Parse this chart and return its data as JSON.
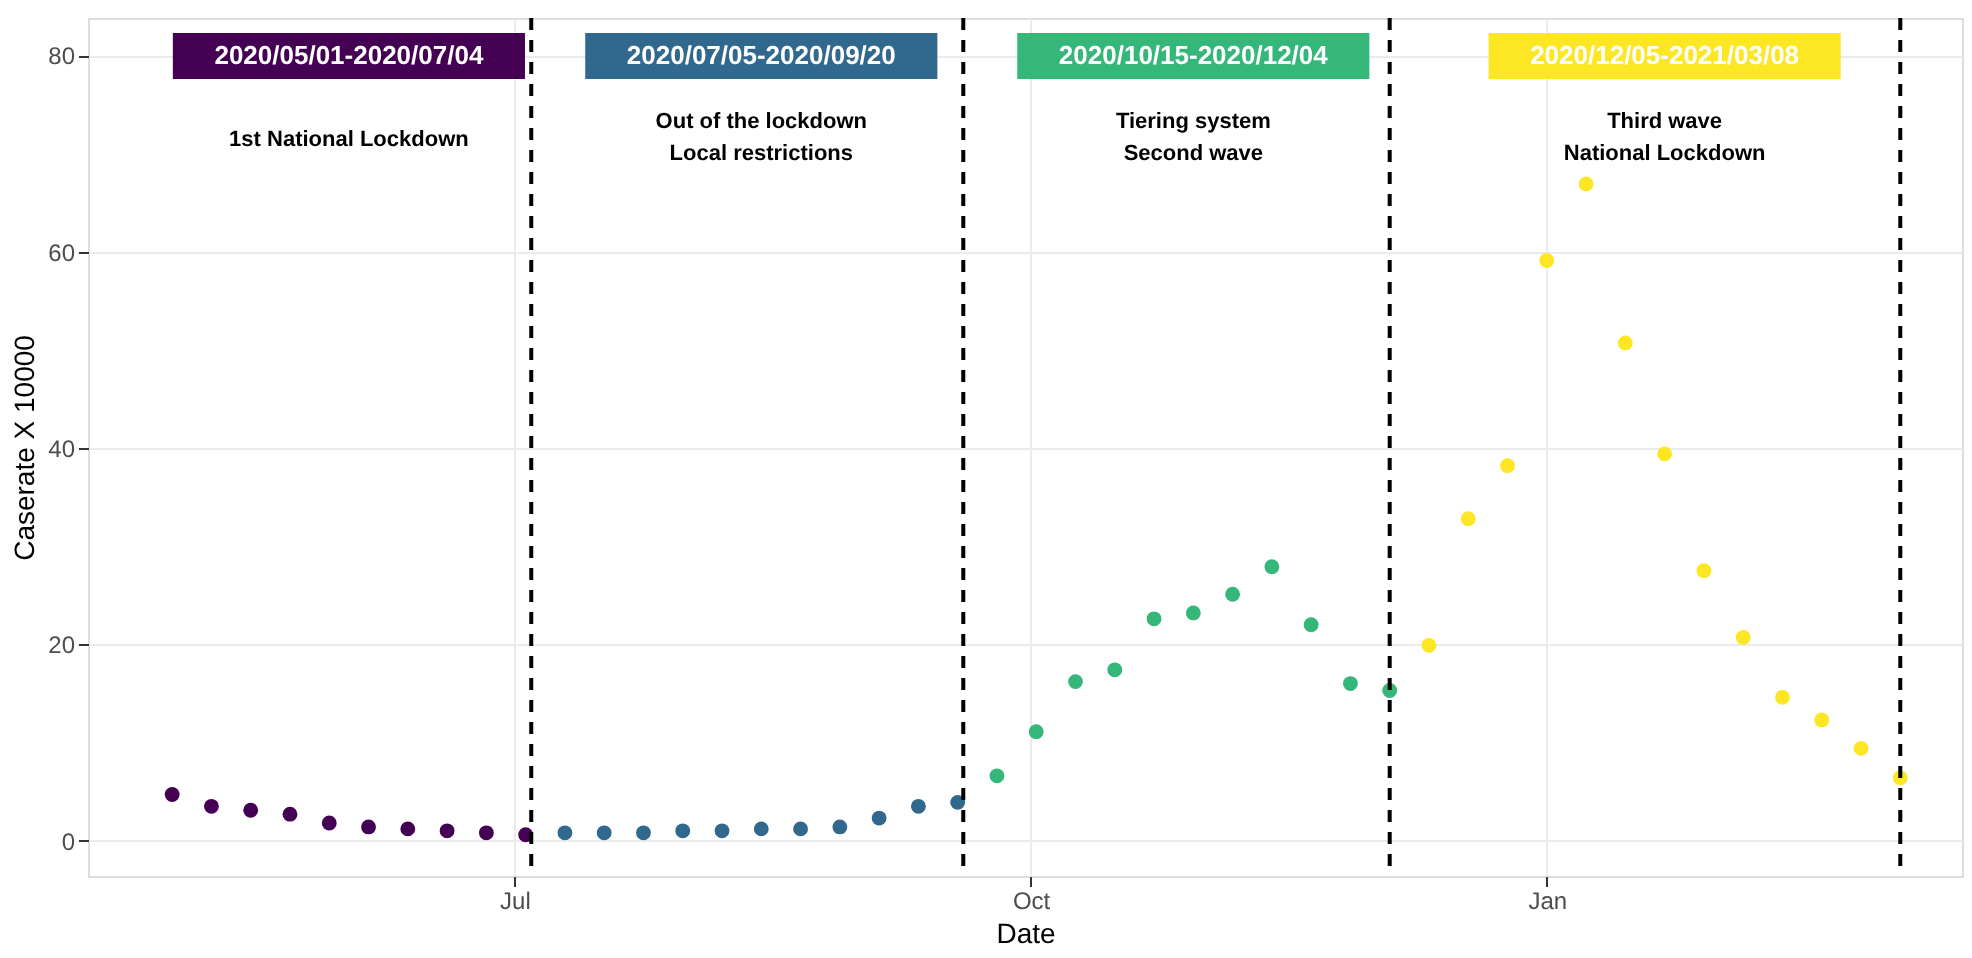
{
  "chart_data": {
    "type": "scatter",
    "xlabel": "Date",
    "ylabel": "Caserate X 10000",
    "xlim": [
      "2020-04-16",
      "2021-03-16"
    ],
    "ylim": [
      -3.6,
      83.8
    ],
    "xticks": [
      {
        "value": "2020-07-01",
        "label": "Jul"
      },
      {
        "value": "2020-10-01",
        "label": "Oct"
      },
      {
        "value": "2021-01-01",
        "label": "Jan"
      }
    ],
    "yticks": [
      0,
      20,
      40,
      60,
      80
    ],
    "grid": true,
    "marker": "circle",
    "series": [
      {
        "name": "2020/05/01-2020/07/04",
        "color": "#440154",
        "x": [
          "2020-05-01",
          "2020-05-08",
          "2020-05-15",
          "2020-05-22",
          "2020-05-29",
          "2020-06-05",
          "2020-06-12",
          "2020-06-19",
          "2020-06-26",
          "2020-07-03"
        ],
        "values": [
          4.7,
          3.5,
          3.1,
          2.7,
          1.8,
          1.4,
          1.2,
          1.0,
          0.8,
          0.6
        ]
      },
      {
        "name": "2020/07/05-2020/09/20",
        "color": "#31688e",
        "x": [
          "2020-07-10",
          "2020-07-17",
          "2020-07-24",
          "2020-07-31",
          "2020-08-07",
          "2020-08-14",
          "2020-08-21",
          "2020-08-28",
          "2020-09-04",
          "2020-09-11",
          "2020-09-18"
        ],
        "values": [
          0.8,
          0.8,
          0.8,
          1.0,
          1.0,
          1.2,
          1.2,
          1.4,
          2.3,
          3.5,
          3.9
        ]
      },
      {
        "name": "2020/10/15-2020/12/04",
        "color": "#35b779",
        "x": [
          "2020-09-25",
          "2020-10-02",
          "2020-10-09",
          "2020-10-16",
          "2020-10-23",
          "2020-10-30",
          "2020-11-06",
          "2020-11-13",
          "2020-11-20",
          "2020-11-27",
          "2020-12-04"
        ],
        "values": [
          6.6,
          11.1,
          16.2,
          17.4,
          22.6,
          23.2,
          25.1,
          27.9,
          22.0,
          16.0,
          15.3
        ]
      },
      {
        "name": "2020/12/05-2021/03/08",
        "color": "#fde725",
        "x": [
          "2020-12-11",
          "2020-12-18",
          "2020-12-25",
          "2021-01-01",
          "2021-01-08",
          "2021-01-15",
          "2021-01-22",
          "2021-01-29",
          "2021-02-05",
          "2021-02-12",
          "2021-02-19",
          "2021-02-26",
          "2021-03-05"
        ],
        "values": [
          19.9,
          32.8,
          38.2,
          59.1,
          66.9,
          50.7,
          39.4,
          27.5,
          20.7,
          14.6,
          12.3,
          9.4,
          6.4
        ]
      }
    ],
    "ref_lines": [
      {
        "axis": "x",
        "value": "2020-07-04",
        "color": "#000000",
        "line_style": "dashed"
      },
      {
        "axis": "x",
        "value": "2020-09-19",
        "color": "#000000",
        "line_style": "dashed"
      },
      {
        "axis": "x",
        "value": "2020-12-04",
        "color": "#000000",
        "line_style": "dashed"
      },
      {
        "axis": "x",
        "value": "2021-03-05",
        "color": "#000000",
        "line_style": "dashed"
      }
    ],
    "annotations": [
      "1st National Lockdown",
      "Out of the lockdown\nLocal restrictions",
      "Tiering system\nSecond wave",
      "Third wave\nNational Lockdown"
    ]
  }
}
